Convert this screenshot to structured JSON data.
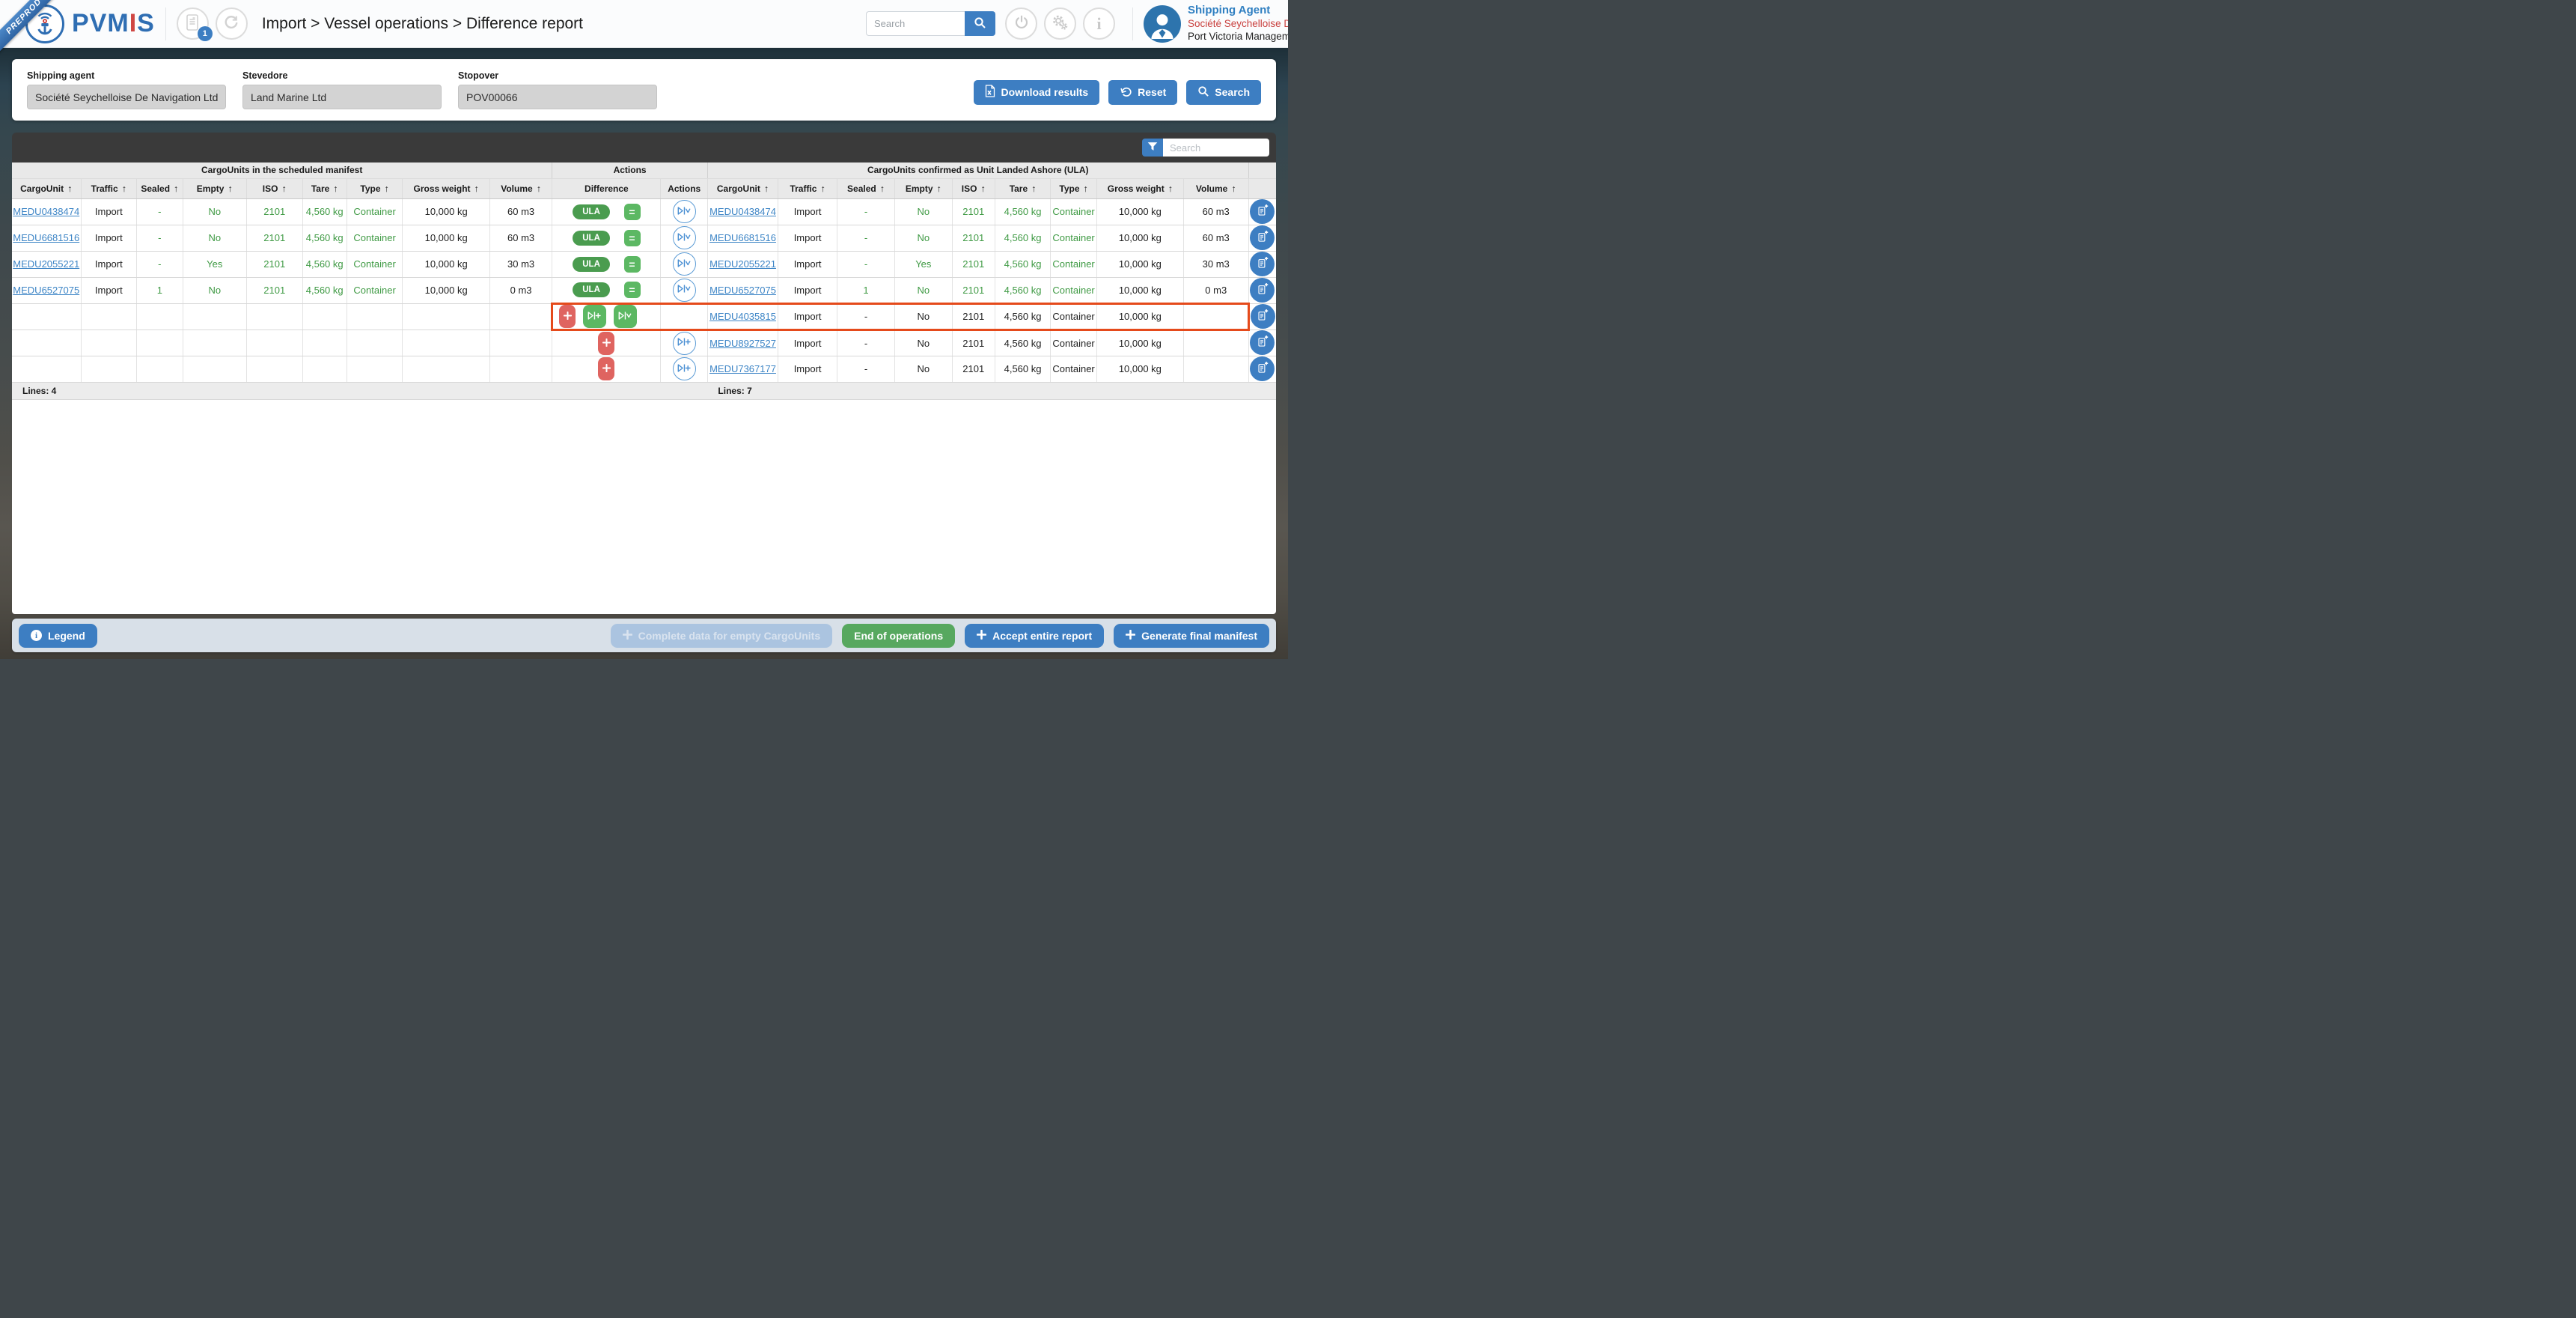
{
  "app": {
    "environment_ribbon": "PREPROD",
    "brand": {
      "primary": "PVM",
      "accent": "I",
      "suffix": "S"
    },
    "notification_badge": "1",
    "breadcrumb": "Import > Vessel operations > Difference report",
    "top_search_placeholder": "Search",
    "user": {
      "role": "Shipping Agent",
      "company": "Société Seychelloise De Navigation Ltd",
      "organisation": "Port Victoria Management"
    }
  },
  "filters": {
    "fields": [
      {
        "label": "Shipping agent",
        "value": "Société Seychelloise De Navigation Ltd"
      },
      {
        "label": "Stevedore",
        "value": "Land Marine Ltd"
      },
      {
        "label": "Stopover",
        "value": "POV00066"
      }
    ],
    "buttons": {
      "download": "Download results",
      "reset": "Reset",
      "search": "Search"
    }
  },
  "table": {
    "filter_search_placeholder": "Search",
    "groups": [
      "CargoUnits in the scheduled manifest",
      "Actions",
      "CargoUnits confirmed as Unit Landed Ashore (ULA)"
    ],
    "columns_manifest": [
      "CargoUnit",
      "Traffic",
      "Sealed",
      "Empty",
      "ISO",
      "Tare",
      "Type",
      "Gross weight",
      "Volume"
    ],
    "columns_actions": [
      "Difference",
      "Actions"
    ],
    "columns_ula": [
      "CargoUnit",
      "Traffic",
      "Sealed",
      "Empty",
      "ISO",
      "Tare",
      "Type",
      "Gross weight",
      "Volume"
    ],
    "badges": {
      "ula": "ULA",
      "equal": "="
    },
    "rows": [
      {
        "manifest": [
          "MEDU0438474",
          "Import",
          "-",
          "No",
          "2101",
          "4,560 kg",
          "Container",
          "10,000 kg",
          "60 m3"
        ],
        "manifest_match": true,
        "difference": "ula_equal",
        "action": "compare",
        "ula": [
          "MEDU0438474",
          "Import",
          "-",
          "No",
          "2101",
          "4,560 kg",
          "Container",
          "10,000 kg",
          "60 m3"
        ],
        "ula_match": true,
        "highlight": false
      },
      {
        "manifest": [
          "MEDU6681516",
          "Import",
          "-",
          "No",
          "2101",
          "4,560 kg",
          "Container",
          "10,000 kg",
          "60 m3"
        ],
        "manifest_match": true,
        "difference": "ula_equal",
        "action": "compare",
        "ula": [
          "MEDU6681516",
          "Import",
          "-",
          "No",
          "2101",
          "4,560 kg",
          "Container",
          "10,000 kg",
          "60 m3"
        ],
        "ula_match": true,
        "highlight": false
      },
      {
        "manifest": [
          "MEDU2055221",
          "Import",
          "-",
          "Yes",
          "2101",
          "4,560 kg",
          "Container",
          "10,000 kg",
          "30 m3"
        ],
        "manifest_match": true,
        "difference": "ula_equal",
        "action": "compare",
        "ula": [
          "MEDU2055221",
          "Import",
          "-",
          "Yes",
          "2101",
          "4,560 kg",
          "Container",
          "10,000 kg",
          "30 m3"
        ],
        "ula_match": true,
        "highlight": false
      },
      {
        "manifest": [
          "MEDU6527075",
          "Import",
          "1",
          "No",
          "2101",
          "4,560 kg",
          "Container",
          "10,000 kg",
          "0 m3"
        ],
        "manifest_match": true,
        "difference": "ula_equal",
        "action": "compare",
        "ula": [
          "MEDU6527075",
          "Import",
          "1",
          "No",
          "2101",
          "4,560 kg",
          "Container",
          "10,000 kg",
          "0 m3"
        ],
        "ula_match": true,
        "highlight": false
      },
      {
        "manifest": [
          "",
          "",
          "",
          "",
          "",
          "",
          "",
          "",
          ""
        ],
        "manifest_match": false,
        "difference": "add_compare",
        "action": "",
        "ula": [
          "MEDU4035815",
          "Import",
          "-",
          "No",
          "2101",
          "4,560 kg",
          "Container",
          "10,000 kg",
          ""
        ],
        "ula_match": false,
        "highlight": true
      },
      {
        "manifest": [
          "",
          "",
          "",
          "",
          "",
          "",
          "",
          "",
          ""
        ],
        "manifest_match": false,
        "difference": "add",
        "action": "add",
        "ula": [
          "MEDU8927527",
          "Import",
          "-",
          "No",
          "2101",
          "4,560 kg",
          "Container",
          "10,000 kg",
          ""
        ],
        "ula_match": false,
        "highlight": false
      },
      {
        "manifest": [
          "",
          "",
          "",
          "",
          "",
          "",
          "",
          "",
          ""
        ],
        "manifest_match": false,
        "difference": "add",
        "action": "add",
        "ula": [
          "MEDU7367177",
          "Import",
          "-",
          "No",
          "2101",
          "4,560 kg",
          "Container",
          "10,000 kg",
          ""
        ],
        "ula_match": false,
        "highlight": false
      }
    ],
    "lines_left": "Lines: 4",
    "lines_right": "Lines: 7"
  },
  "footer": {
    "legend": "Legend",
    "complete_empty": "Complete data for empty CargoUnits",
    "end_operations": "End of operations",
    "accept_report": "Accept entire report",
    "generate_manifest": "Generate final manifest"
  },
  "icons": {
    "anchor-logo-icon": "anchor with signal arcs",
    "manifest-document-icon": "document sheet",
    "refresh-icon": "circular arrows",
    "search-icon": "magnifier",
    "power-icon": "power symbol",
    "settings-icon": "two gears",
    "info-icon": "letter i",
    "avatar-person-icon": "person silhouette",
    "excel-file-icon": "spreadsheet file with x",
    "reset-undo-icon": "undo arrow",
    "filter-funnel-icon": "funnel",
    "sort-ascending-icon": "↑",
    "add-icon": "+",
    "transfer-add-icon": "triangle bar plus",
    "transfer-validate-icon": "triangle bar chevron",
    "equal-icon": "=",
    "document-add-icon": "document with plus"
  },
  "colors": {
    "primary_blue": "#3d7ec2",
    "logo_blue": "#2f6eb3",
    "match_green": "#3f9a44",
    "badge_green": "#4a9c4f",
    "button_green": "#5cb863",
    "alert_red": "#df6460",
    "highlight_border": "#e54a1b",
    "link_blue": "#3d85c6",
    "panel_dark": "#3a3a3a",
    "bottom_bar": "#d8e0e8"
  }
}
